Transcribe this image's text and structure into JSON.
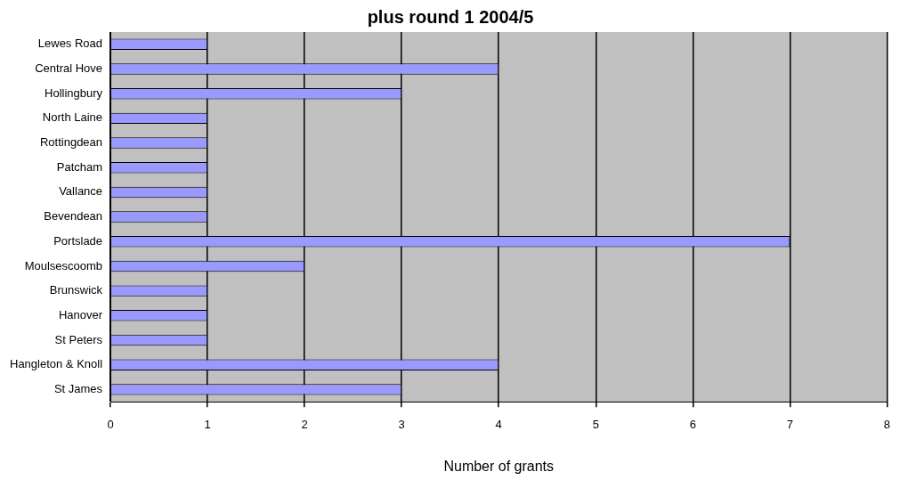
{
  "chart_data": {
    "type": "bar",
    "orientation": "horizontal",
    "title": "plus round 1 2004/5",
    "xlabel": "Number of grants",
    "categories": [
      "Lewes Road",
      "Central Hove",
      "Hollingbury",
      "North Laine",
      "Rottingdean",
      "Patcham",
      "Vallance",
      "Bevendean",
      "Portslade",
      "Moulsescoomb",
      "Brunswick",
      "Hanover",
      "St Peters",
      "Hangleton & Knoll",
      "St James"
    ],
    "values": [
      1,
      4,
      3,
      1,
      1,
      1,
      1,
      1,
      7,
      2,
      1,
      1,
      1,
      4,
      3
    ],
    "color": "#9999ff",
    "xlim": [
      0,
      8
    ],
    "xticks": [
      0,
      1,
      2,
      3,
      4,
      5,
      6,
      7,
      8
    ],
    "grid": "x",
    "legend": false
  }
}
